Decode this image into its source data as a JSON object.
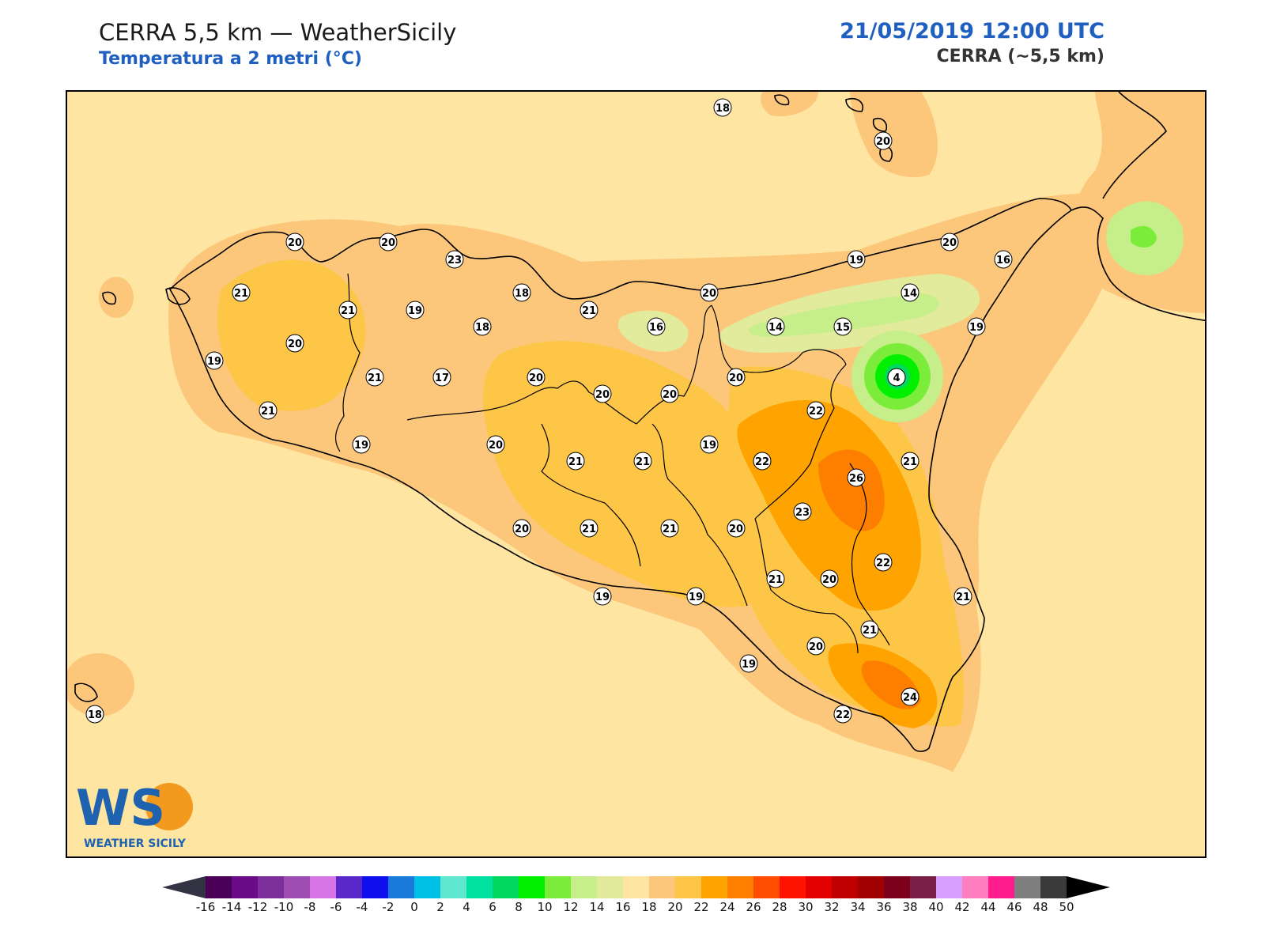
{
  "header": {
    "title": "CERRA 5,5 km — WeatherSicily",
    "subtitle": "Temperatura a 2 metri (°C)",
    "datetime": "21/05/2019 12:00 UTC",
    "model": "CERRA (~5,5 km)"
  },
  "logo": {
    "letters": "WS",
    "text": "WEATHER SICILY"
  },
  "map": {
    "region": "Sicily",
    "background_color": "#fee5a2",
    "station_values": [
      "18",
      "20",
      "20",
      "20",
      "23",
      "21",
      "21",
      "19",
      "20",
      "18",
      "18",
      "21",
      "16",
      "20",
      "19",
      "14",
      "20",
      "16",
      "19",
      "14",
      "15",
      "19",
      "21",
      "17",
      "20",
      "20",
      "20",
      "20",
      "4",
      "22",
      "21",
      "20",
      "21",
      "21",
      "19",
      "22",
      "26",
      "21",
      "19",
      "23",
      "20",
      "21",
      "21",
      "20",
      "22",
      "21",
      "20",
      "19",
      "19",
      "21",
      "21",
      "20",
      "19",
      "24",
      "22",
      "18"
    ]
  },
  "colorbar": {
    "levels": [
      "-16",
      "-14",
      "-12",
      "-10",
      "-8",
      "-6",
      "-4",
      "-2",
      "0",
      "2",
      "4",
      "6",
      "8",
      "10",
      "12",
      "14",
      "16",
      "18",
      "20",
      "22",
      "24",
      "26",
      "28",
      "30",
      "32",
      "34",
      "36",
      "38",
      "40",
      "42",
      "44",
      "46",
      "48",
      "50"
    ],
    "colors": [
      "#4b0057",
      "#6a0c87",
      "#7c2f9a",
      "#9e4db3",
      "#d774e6",
      "#5a28c9",
      "#1010ee",
      "#1a7ad9",
      "#00c0e6",
      "#5fe8cf",
      "#00e0a0",
      "#00d85f",
      "#00f000",
      "#7cec3b",
      "#c6ee8a",
      "#e2ea9c",
      "#fee5a2",
      "#fcc77a",
      "#fec646",
      "#ffa300",
      "#fe7f00",
      "#fe4c00",
      "#fe1400",
      "#e20000",
      "#c00000",
      "#a00000",
      "#7c001c",
      "#7a1f48",
      "#d79dff",
      "#ff7ec0",
      "#ff1d8e",
      "#7f7f7f",
      "#3a3a3a"
    ],
    "under_color": "#333344",
    "over_color": "#000000"
  }
}
